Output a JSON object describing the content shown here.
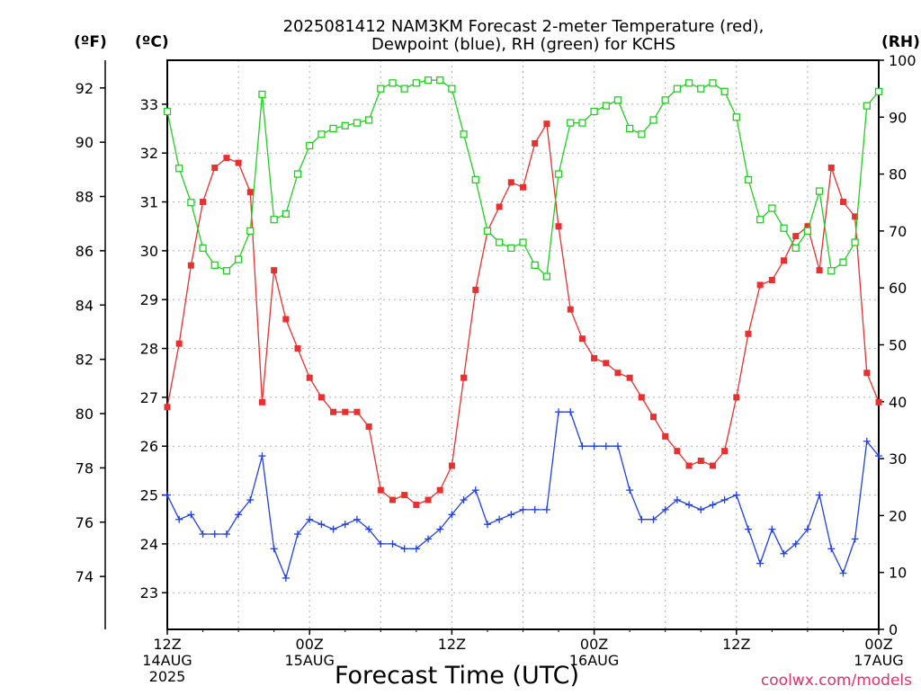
{
  "chart_data": {
    "type": "line",
    "title": [
      "2025081412 NAM3KM Forecast 2-meter Temperature (red),",
      "Dewpoint (blue), RH (green) for KCHS"
    ],
    "xlabel": "Forecast Time (UTC)",
    "credit": "coolwx.com/models",
    "axes": {
      "fahrenheit": {
        "label": "(ºF)",
        "ticks": [
          74,
          76,
          78,
          80,
          82,
          84,
          86,
          88,
          90,
          92
        ]
      },
      "celsius": {
        "label": "(ºC)",
        "ticks": [
          23,
          24,
          25,
          26,
          27,
          28,
          29,
          30,
          31,
          32,
          33
        ],
        "ylim": [
          22.25,
          33.9
        ]
      },
      "rh": {
        "label": "(RH)",
        "ticks": [
          0,
          10,
          20,
          30,
          40,
          50,
          60,
          70,
          80,
          90,
          100
        ],
        "ylim": [
          0,
          100
        ]
      }
    },
    "x_ticks": [
      {
        "hour": 0,
        "lines": [
          "12Z",
          "14AUG",
          "2025"
        ]
      },
      {
        "hour": 12,
        "lines": [
          "00Z",
          "15AUG"
        ]
      },
      {
        "hour": 24,
        "lines": [
          "12Z"
        ]
      },
      {
        "hour": 36,
        "lines": [
          "00Z",
          "16AUG"
        ]
      },
      {
        "hour": 48,
        "lines": [
          "12Z"
        ]
      },
      {
        "hour": 60,
        "lines": [
          "00Z",
          "17AUG"
        ]
      }
    ],
    "xlim": [
      0,
      60
    ],
    "grid": true,
    "colors": {
      "temperature": "#e83030",
      "dewpoint": "#2040e0",
      "rh": "#20d020"
    },
    "series": [
      {
        "name": "Temperature",
        "unit": "°C",
        "color": "#e83030",
        "marker": "filled-square",
        "values": [
          26.8,
          28.1,
          29.7,
          31.0,
          31.7,
          31.9,
          31.8,
          31.2,
          26.9,
          29.6,
          28.6,
          28.0,
          27.4,
          27.0,
          26.7,
          26.7,
          26.7,
          26.4,
          25.1,
          24.9,
          25.0,
          24.8,
          24.9,
          25.1,
          25.6,
          27.4,
          29.2,
          30.4,
          30.9,
          31.4,
          31.3,
          32.2,
          32.6,
          30.5,
          28.8,
          28.2,
          27.8,
          27.7,
          27.5,
          27.4,
          27.0,
          26.6,
          26.2,
          25.9,
          25.6,
          25.7,
          25.6,
          25.9,
          27.0,
          28.3,
          29.3,
          29.4,
          29.8,
          30.3,
          30.5,
          29.6,
          31.7,
          31.0,
          30.7,
          27.5,
          26.9
        ]
      },
      {
        "name": "Dewpoint",
        "unit": "°C",
        "color": "#2040e0",
        "marker": "plus",
        "values": [
          25.0,
          24.5,
          24.6,
          24.2,
          24.2,
          24.2,
          24.6,
          24.9,
          25.8,
          23.9,
          23.3,
          24.2,
          24.5,
          24.4,
          24.3,
          24.4,
          24.5,
          24.3,
          24.0,
          24.0,
          23.9,
          23.9,
          24.1,
          24.3,
          24.6,
          24.9,
          25.1,
          24.4,
          24.5,
          24.6,
          24.7,
          24.7,
          24.7,
          26.7,
          26.7,
          26.0,
          26.0,
          26.0,
          26.0,
          25.1,
          24.5,
          24.5,
          24.7,
          24.9,
          24.8,
          24.7,
          24.8,
          24.9,
          25.0,
          24.3,
          23.6,
          24.3,
          23.8,
          24.0,
          24.3,
          25.0,
          23.9,
          23.4,
          24.1,
          26.1,
          25.8
        ]
      },
      {
        "name": "RH",
        "unit": "%",
        "color": "#20d020",
        "marker": "open-square",
        "values": [
          91,
          81,
          75,
          67,
          64,
          63,
          65,
          70,
          94,
          72,
          73,
          80,
          85,
          87,
          88,
          88.5,
          89,
          89.5,
          95,
          96,
          95,
          96,
          96.5,
          96.5,
          95,
          87,
          79,
          70,
          68,
          67,
          68,
          64,
          62,
          80,
          89,
          89,
          91,
          92,
          93,
          88,
          87,
          89.5,
          93,
          95,
          96,
          95,
          96,
          94.5,
          90,
          79,
          72,
          74,
          70.5,
          67,
          70,
          77,
          63,
          64.5,
          68,
          92,
          94.5
        ]
      }
    ]
  }
}
